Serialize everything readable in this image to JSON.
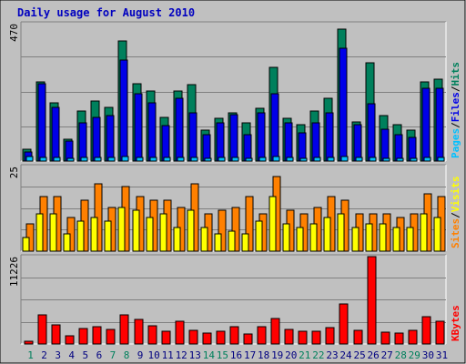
{
  "chart_data": {
    "type": "bar",
    "title": "Daily usage for August 2010",
    "days": [
      1,
      2,
      3,
      4,
      5,
      6,
      7,
      8,
      9,
      10,
      11,
      12,
      13,
      14,
      15,
      16,
      17,
      18,
      19,
      20,
      21,
      22,
      23,
      24,
      25,
      26,
      27,
      28,
      29,
      30,
      31
    ],
    "weekend_days": [
      1,
      7,
      8,
      14,
      15,
      21,
      22,
      28,
      29
    ],
    "colors": {
      "hits": "#00805c",
      "files": "#0000e8",
      "pages": "#00c0ff",
      "visits": "#ffff00",
      "sites": "#ff8000",
      "kbytes": "#ff0000",
      "title": "#0000c0",
      "weekend_label": "#00805c",
      "weekday_label": "#000080",
      "plot_bg": "#c0c0c0",
      "frame_bg": "#c0c0c0"
    },
    "panels": [
      {
        "name": "hits-files-pages",
        "ymax_label": "470",
        "ymax": 470,
        "legend": [
          "Pages",
          "/",
          "Files",
          "/",
          "Hits"
        ],
        "legend_colors": [
          "#00c0ff",
          "#000000",
          "#0000e8",
          "#000000",
          "#00805c"
        ],
        "series": [
          {
            "name": "Hits",
            "values": [
              40,
              270,
              200,
              75,
              170,
              205,
              185,
              410,
              265,
              240,
              150,
              240,
              260,
              105,
              145,
              165,
              130,
              180,
              320,
              145,
              125,
              170,
              215,
              450,
              135,
              335,
              155,
              125,
              105,
              270,
              280
            ]
          },
          {
            "name": "Files",
            "values": [
              30,
              265,
              185,
              70,
              130,
              150,
              155,
              345,
              230,
              200,
              120,
              215,
              165,
              90,
              130,
              160,
              90,
              165,
              230,
              130,
              95,
              130,
              165,
              385,
              125,
              195,
              110,
              90,
              80,
              250,
              250
            ]
          },
          {
            "name": "Pages",
            "values": [
              15,
              12,
              12,
              10,
              12,
              12,
              12,
              15,
              12,
              12,
              12,
              12,
              12,
              10,
              12,
              12,
              10,
              12,
              15,
              12,
              10,
              12,
              12,
              15,
              12,
              12,
              10,
              10,
              10,
              12,
              12
            ]
          }
        ]
      },
      {
        "name": "sites-visits",
        "ymax_label": "25",
        "ymax": 25,
        "legend": [
          "Sites",
          "/",
          "Visits"
        ],
        "legend_colors": [
          "#ff8000",
          "#000000",
          "#ffff00"
        ],
        "series": [
          {
            "name": "Sites",
            "values": [
              8,
              16,
              16,
              10,
              15,
              20,
              13,
              19,
              16,
              15,
              15,
              13,
              20,
              11,
              12,
              13,
              16,
              11,
              22,
              12,
              11,
              13,
              16,
              15,
              11,
              11,
              11,
              10,
              11,
              17,
              16
            ]
          },
          {
            "name": "Visits",
            "values": [
              4,
              11,
              11,
              5,
              9,
              10,
              9,
              13,
              12,
              10,
              11,
              7,
              12,
              7,
              5,
              6,
              5,
              9,
              16,
              8,
              7,
              8,
              10,
              11,
              7,
              8,
              8,
              7,
              7,
              11,
              10
            ]
          }
        ]
      },
      {
        "name": "kbytes",
        "ymax_label": "11226",
        "ymax": 11226,
        "legend": [
          "KBytes"
        ],
        "legend_colors": [
          "#ff0000"
        ],
        "series": [
          {
            "name": "KBytes",
            "values": [
              400,
              3800,
              2400,
              1100,
              2000,
              2200,
              1900,
              3700,
              3100,
              2300,
              1600,
              2900,
              1700,
              1400,
              1600,
              2200,
              1300,
              2200,
              3300,
              1900,
              1600,
              1600,
              2100,
              5200,
              1800,
              11226,
              1500,
              1400,
              1800,
              3500,
              2900
            ]
          }
        ]
      }
    ]
  }
}
